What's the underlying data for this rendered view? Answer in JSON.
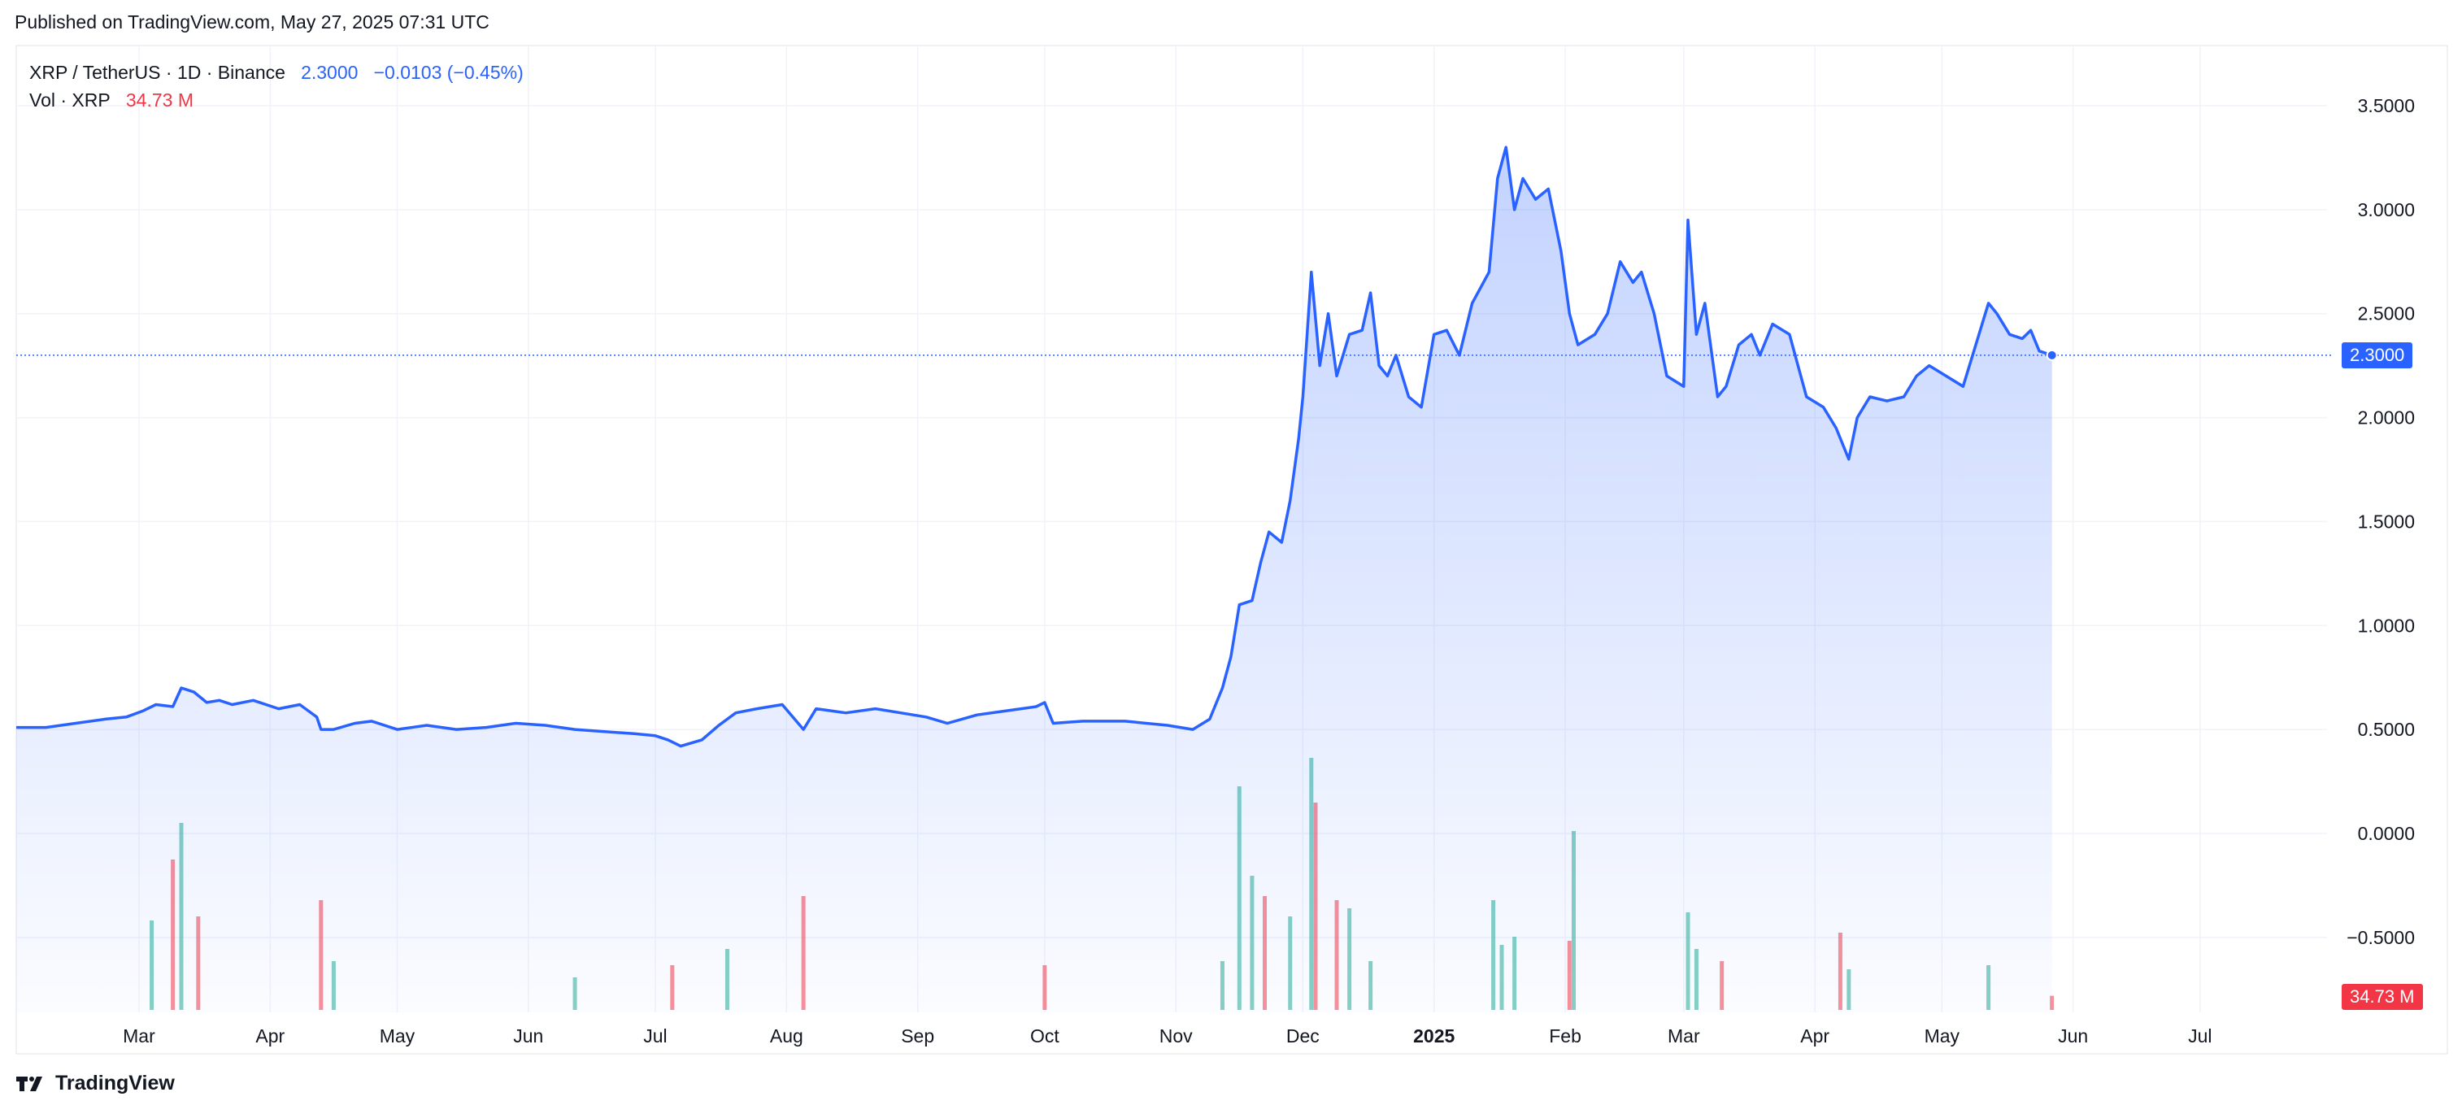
{
  "header": {
    "published": "Published on TradingView.com, May 27, 2025 07:31 UTC"
  },
  "legend": {
    "symbol": "XRP / TetherUS · 1D · Binance",
    "price": "2.3000",
    "change": "−0.0103 (−0.45%)",
    "vol_label": "Vol · XRP",
    "vol_value": "34.73 M"
  },
  "price_tag": "2.3000",
  "volume_tag": "34.73 M",
  "footer": {
    "brand": "TradingView"
  },
  "colors": {
    "line": "#2962ff",
    "up": "#22ab94",
    "down": "#f23645",
    "grid": "#f0f3fa"
  },
  "chart_data": {
    "type": "area",
    "title": "XRP / TetherUS · 1D · Binance",
    "x_range": [
      "2024-02-01",
      "2025-07-31"
    ],
    "y_ticks": [
      3.5,
      3.0,
      2.5,
      2.0,
      1.5,
      1.0,
      0.5,
      0.0,
      -0.5
    ],
    "y_tick_labels": [
      "3.5000",
      "3.0000",
      "2.5000",
      "2.0000",
      "1.5000",
      "1.0000",
      "0.5000",
      "0.0000",
      "−0.5000"
    ],
    "x_ticks": [
      {
        "date": "2024-03-01",
        "label": "Mar",
        "bold": false
      },
      {
        "date": "2024-04-01",
        "label": "Apr",
        "bold": false
      },
      {
        "date": "2024-05-01",
        "label": "May",
        "bold": false
      },
      {
        "date": "2024-06-01",
        "label": "Jun",
        "bold": false
      },
      {
        "date": "2024-07-01",
        "label": "Jul",
        "bold": false
      },
      {
        "date": "2024-08-01",
        "label": "Aug",
        "bold": false
      },
      {
        "date": "2024-09-01",
        "label": "Sep",
        "bold": false
      },
      {
        "date": "2024-10-01",
        "label": "Oct",
        "bold": false
      },
      {
        "date": "2024-11-01",
        "label": "Nov",
        "bold": false
      },
      {
        "date": "2024-12-01",
        "label": "Dec",
        "bold": false
      },
      {
        "date": "2025-01-01",
        "label": "2025",
        "bold": true
      },
      {
        "date": "2025-02-01",
        "label": "Feb",
        "bold": false
      },
      {
        "date": "2025-03-01",
        "label": "Mar",
        "bold": false
      },
      {
        "date": "2025-04-01",
        "label": "Apr",
        "bold": false
      },
      {
        "date": "2025-05-01",
        "label": "May",
        "bold": false
      },
      {
        "date": "2025-06-01",
        "label": "Jun",
        "bold": false
      },
      {
        "date": "2025-07-01",
        "label": "Jul",
        "bold": false
      }
    ],
    "series": [
      {
        "name": "XRP / TetherUS",
        "points": [
          [
            "2024-02-01",
            0.51
          ],
          [
            "2024-02-08",
            0.51
          ],
          [
            "2024-02-15",
            0.53
          ],
          [
            "2024-02-22",
            0.55
          ],
          [
            "2024-02-27",
            0.56
          ],
          [
            "2024-03-02",
            0.59
          ],
          [
            "2024-03-05",
            0.62
          ],
          [
            "2024-03-09",
            0.61
          ],
          [
            "2024-03-11",
            0.7
          ],
          [
            "2024-03-14",
            0.68
          ],
          [
            "2024-03-17",
            0.63
          ],
          [
            "2024-03-20",
            0.64
          ],
          [
            "2024-03-23",
            0.62
          ],
          [
            "2024-03-28",
            0.64
          ],
          [
            "2024-04-03",
            0.6
          ],
          [
            "2024-04-08",
            0.62
          ],
          [
            "2024-04-12",
            0.56
          ],
          [
            "2024-04-13",
            0.5
          ],
          [
            "2024-04-16",
            0.5
          ],
          [
            "2024-04-21",
            0.53
          ],
          [
            "2024-04-25",
            0.54
          ],
          [
            "2024-05-01",
            0.5
          ],
          [
            "2024-05-08",
            0.52
          ],
          [
            "2024-05-15",
            0.5
          ],
          [
            "2024-05-22",
            0.51
          ],
          [
            "2024-05-29",
            0.53
          ],
          [
            "2024-06-05",
            0.52
          ],
          [
            "2024-06-12",
            0.5
          ],
          [
            "2024-06-19",
            0.49
          ],
          [
            "2024-06-26",
            0.48
          ],
          [
            "2024-07-01",
            0.47
          ],
          [
            "2024-07-04",
            0.45
          ],
          [
            "2024-07-07",
            0.42
          ],
          [
            "2024-07-12",
            0.45
          ],
          [
            "2024-07-16",
            0.52
          ],
          [
            "2024-07-20",
            0.58
          ],
          [
            "2024-07-25",
            0.6
          ],
          [
            "2024-07-31",
            0.62
          ],
          [
            "2024-08-05",
            0.5
          ],
          [
            "2024-08-08",
            0.6
          ],
          [
            "2024-08-15",
            0.58
          ],
          [
            "2024-08-22",
            0.6
          ],
          [
            "2024-08-28",
            0.58
          ],
          [
            "2024-09-03",
            0.56
          ],
          [
            "2024-09-08",
            0.53
          ],
          [
            "2024-09-15",
            0.57
          ],
          [
            "2024-09-22",
            0.59
          ],
          [
            "2024-09-29",
            0.61
          ],
          [
            "2024-10-01",
            0.63
          ],
          [
            "2024-10-03",
            0.53
          ],
          [
            "2024-10-10",
            0.54
          ],
          [
            "2024-10-20",
            0.54
          ],
          [
            "2024-10-30",
            0.52
          ],
          [
            "2024-11-05",
            0.5
          ],
          [
            "2024-11-09",
            0.55
          ],
          [
            "2024-11-12",
            0.7
          ],
          [
            "2024-11-14",
            0.85
          ],
          [
            "2024-11-16",
            1.1
          ],
          [
            "2024-11-19",
            1.12
          ],
          [
            "2024-11-21",
            1.3
          ],
          [
            "2024-11-23",
            1.45
          ],
          [
            "2024-11-26",
            1.4
          ],
          [
            "2024-11-28",
            1.6
          ],
          [
            "2024-11-30",
            1.9
          ],
          [
            "2024-12-01",
            2.1
          ],
          [
            "2024-12-03",
            2.7
          ],
          [
            "2024-12-05",
            2.25
          ],
          [
            "2024-12-07",
            2.5
          ],
          [
            "2024-12-09",
            2.2
          ],
          [
            "2024-12-12",
            2.4
          ],
          [
            "2024-12-15",
            2.42
          ],
          [
            "2024-12-17",
            2.6
          ],
          [
            "2024-12-19",
            2.25
          ],
          [
            "2024-12-21",
            2.2
          ],
          [
            "2024-12-23",
            2.3
          ],
          [
            "2024-12-26",
            2.1
          ],
          [
            "2024-12-29",
            2.05
          ],
          [
            "2025-01-01",
            2.4
          ],
          [
            "2025-01-04",
            2.42
          ],
          [
            "2025-01-07",
            2.3
          ],
          [
            "2025-01-10",
            2.55
          ],
          [
            "2025-01-14",
            2.7
          ],
          [
            "2025-01-16",
            3.15
          ],
          [
            "2025-01-18",
            3.3
          ],
          [
            "2025-01-20",
            3.0
          ],
          [
            "2025-01-22",
            3.15
          ],
          [
            "2025-01-25",
            3.05
          ],
          [
            "2025-01-28",
            3.1
          ],
          [
            "2025-01-31",
            2.8
          ],
          [
            "2025-02-02",
            2.5
          ],
          [
            "2025-02-04",
            2.35
          ],
          [
            "2025-02-08",
            2.4
          ],
          [
            "2025-02-11",
            2.5
          ],
          [
            "2025-02-14",
            2.75
          ],
          [
            "2025-02-17",
            2.65
          ],
          [
            "2025-02-19",
            2.7
          ],
          [
            "2025-02-22",
            2.5
          ],
          [
            "2025-02-25",
            2.2
          ],
          [
            "2025-03-01",
            2.15
          ],
          [
            "2025-03-02",
            2.95
          ],
          [
            "2025-03-04",
            2.4
          ],
          [
            "2025-03-06",
            2.55
          ],
          [
            "2025-03-09",
            2.1
          ],
          [
            "2025-03-11",
            2.15
          ],
          [
            "2025-03-14",
            2.35
          ],
          [
            "2025-03-17",
            2.4
          ],
          [
            "2025-03-19",
            2.3
          ],
          [
            "2025-03-22",
            2.45
          ],
          [
            "2025-03-26",
            2.4
          ],
          [
            "2025-03-30",
            2.1
          ],
          [
            "2025-04-03",
            2.05
          ],
          [
            "2025-04-06",
            1.95
          ],
          [
            "2025-04-09",
            1.8
          ],
          [
            "2025-04-11",
            2.0
          ],
          [
            "2025-04-14",
            2.1
          ],
          [
            "2025-04-18",
            2.08
          ],
          [
            "2025-04-22",
            2.1
          ],
          [
            "2025-04-25",
            2.2
          ],
          [
            "2025-04-28",
            2.25
          ],
          [
            "2025-05-02",
            2.2
          ],
          [
            "2025-05-06",
            2.15
          ],
          [
            "2025-05-09",
            2.35
          ],
          [
            "2025-05-12",
            2.55
          ],
          [
            "2025-05-14",
            2.5
          ],
          [
            "2025-05-17",
            2.4
          ],
          [
            "2025-05-20",
            2.38
          ],
          [
            "2025-05-22",
            2.42
          ],
          [
            "2025-05-24",
            2.32
          ],
          [
            "2025-05-27",
            2.3
          ]
        ]
      }
    ],
    "volume": {
      "label": "Vol · XRP",
      "axis_max_millions": 600,
      "bars": [
        [
          "2024-03-11",
          460,
          "up"
        ],
        [
          "2024-03-09",
          370,
          "down"
        ],
        [
          "2024-03-04",
          220,
          "up"
        ],
        [
          "2024-03-15",
          230,
          "down"
        ],
        [
          "2024-04-13",
          270,
          "down"
        ],
        [
          "2024-04-16",
          120,
          "up"
        ],
        [
          "2024-06-12",
          80,
          "up"
        ],
        [
          "2024-07-05",
          110,
          "down"
        ],
        [
          "2024-07-18",
          150,
          "up"
        ],
        [
          "2024-08-05",
          280,
          "down"
        ],
        [
          "2024-10-01",
          110,
          "down"
        ],
        [
          "2024-11-12",
          120,
          "up"
        ],
        [
          "2024-11-16",
          550,
          "up"
        ],
        [
          "2024-11-19",
          330,
          "up"
        ],
        [
          "2024-11-22",
          280,
          "down"
        ],
        [
          "2024-11-28",
          230,
          "up"
        ],
        [
          "2024-12-03",
          620,
          "up"
        ],
        [
          "2024-12-04",
          510,
          "down"
        ],
        [
          "2024-12-09",
          270,
          "down"
        ],
        [
          "2024-12-12",
          250,
          "up"
        ],
        [
          "2024-12-17",
          120,
          "up"
        ],
        [
          "2025-01-15",
          270,
          "up"
        ],
        [
          "2025-01-17",
          160,
          "up"
        ],
        [
          "2025-01-20",
          180,
          "up"
        ],
        [
          "2025-02-03",
          440,
          "up"
        ],
        [
          "2025-02-02",
          170,
          "down"
        ],
        [
          "2025-03-02",
          240,
          "up"
        ],
        [
          "2025-03-04",
          150,
          "up"
        ],
        [
          "2025-03-10",
          120,
          "down"
        ],
        [
          "2025-04-07",
          190,
          "down"
        ],
        [
          "2025-04-09",
          100,
          "up"
        ],
        [
          "2025-05-12",
          110,
          "up"
        ],
        [
          "2025-05-27",
          34.73,
          "down"
        ]
      ]
    }
  }
}
